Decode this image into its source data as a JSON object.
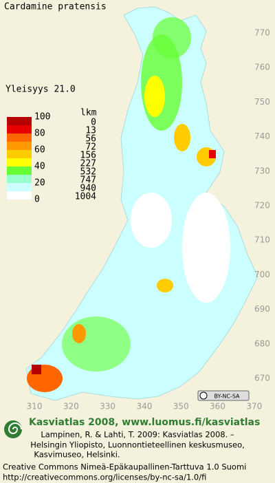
{
  "title": "Cardamine pratensis",
  "frequency": "Yleisyys  21.0",
  "legend": {
    "colors": [
      "#b40000",
      "#e80000",
      "#ff6600",
      "#ff9900",
      "#ffcc00",
      "#ffff00",
      "#66ff33",
      "#99ffcc",
      "#ccffff",
      "#ffffff"
    ],
    "scale_labels": [
      100,
      80,
      60,
      40,
      20,
      0
    ]
  },
  "counts": {
    "header": "lkm",
    "values": [
      0,
      13,
      56,
      72,
      156,
      227,
      532,
      747,
      940,
      1004
    ]
  },
  "grid": {
    "y_labels": [
      770,
      760,
      750,
      740,
      730,
      720,
      710,
      700,
      690,
      680,
      670
    ],
    "x_labels": [
      310,
      320,
      330,
      340,
      350,
      360,
      370
    ]
  },
  "license_badge": "BY-NC-SA",
  "footer": {
    "heading": "Kasviatlas 2008, www.luomus.fi/kasviatlas",
    "citation": [
      "Lampinen, R. & Lahti, T. 2009: Kasviatlas 2008. –",
      "Helsingin Yliopisto, Luonnontieteellinen keskusmuseo,",
      "Kasvimuseo, Helsinki."
    ],
    "license": "Creative Commons Nimeä-Epäkaupallinen-Tarttuva 1.0 Suomi",
    "url": "http://creativecommons.org/licenses/by-nc-sa/1.0/fi"
  }
}
